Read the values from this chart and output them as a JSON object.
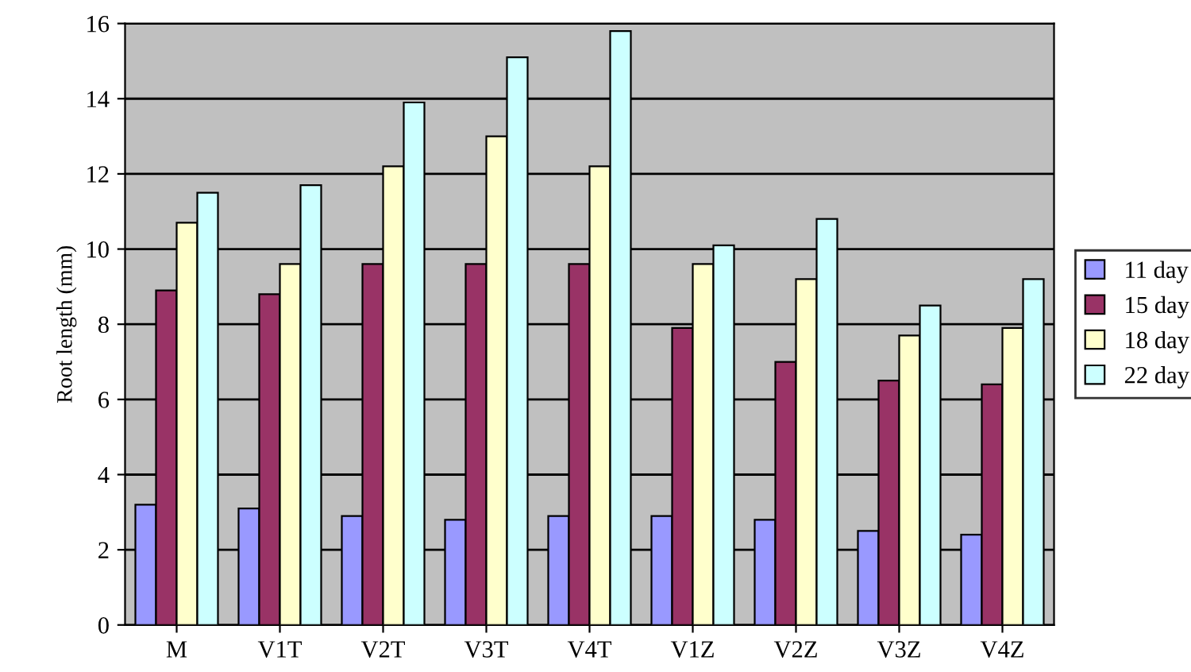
{
  "chart_data": {
    "type": "bar",
    "ylabel": "Root length (mm)",
    "categories": [
      "M",
      "V1T",
      "V2T",
      "V3T",
      "V4T",
      "V1Z",
      "V2Z",
      "V3Z",
      "V4Z"
    ],
    "series": [
      {
        "name": "11 day",
        "color": "#9999ff",
        "values": [
          3.2,
          3.1,
          2.9,
          2.8,
          2.9,
          2.9,
          2.8,
          2.5,
          2.4
        ]
      },
      {
        "name": "15 day",
        "color": "#993366",
        "values": [
          8.9,
          8.8,
          9.6,
          9.6,
          9.6,
          7.9,
          7.0,
          6.5,
          6.4
        ]
      },
      {
        "name": "18 day",
        "color": "#ffffcc",
        "values": [
          10.7,
          9.6,
          12.2,
          13.0,
          12.2,
          9.6,
          9.2,
          7.7,
          7.9
        ]
      },
      {
        "name": "22 day",
        "color": "#ccffff",
        "values": [
          11.5,
          11.7,
          13.9,
          15.1,
          15.8,
          10.1,
          10.8,
          8.5,
          9.2
        ]
      }
    ],
    "ylim": [
      0,
      16
    ],
    "yticks": [
      0,
      2,
      4,
      6,
      8,
      10,
      12,
      14,
      16
    ],
    "grid": "y",
    "legend": "right"
  }
}
